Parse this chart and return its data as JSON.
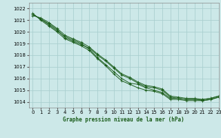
{
  "xlabel": "Graphe pression niveau de la mer (hPa)",
  "xlim": [
    -0.5,
    23
  ],
  "ylim": [
    1013.5,
    1022.5
  ],
  "yticks": [
    1014,
    1015,
    1016,
    1017,
    1018,
    1019,
    1020,
    1021,
    1022
  ],
  "xticks": [
    0,
    1,
    2,
    3,
    4,
    5,
    6,
    7,
    8,
    9,
    10,
    11,
    12,
    13,
    14,
    15,
    16,
    17,
    18,
    19,
    20,
    21,
    22,
    23
  ],
  "background_color": "#cce8e8",
  "grid_color": "#aacfcf",
  "line_color": "#1a5c1a",
  "series": [
    [
      1021.5,
      1021.1,
      1020.7,
      1020.2,
      1019.5,
      1019.2,
      1018.9,
      1018.6,
      1018.0,
      1017.5,
      1016.9,
      1016.3,
      1016.0,
      1015.6,
      1015.3,
      1015.2,
      1015.0,
      1014.4,
      1014.3,
      1014.2,
      1014.2,
      1014.1,
      1014.2,
      1014.4
    ],
    [
      1021.5,
      1021.1,
      1020.6,
      1020.1,
      1019.6,
      1019.3,
      1019.0,
      1018.5,
      1017.8,
      1017.2,
      1016.6,
      1016.0,
      1015.6,
      1015.5,
      1015.2,
      1015.0,
      1014.8,
      1014.3,
      1014.3,
      1014.2,
      1014.2,
      1014.2,
      1014.3,
      1014.5
    ],
    [
      1021.6,
      1021.0,
      1020.5,
      1020.0,
      1019.4,
      1019.1,
      1018.8,
      1018.4,
      1017.7,
      1017.1,
      1016.4,
      1015.8,
      1015.5,
      1015.2,
      1015.0,
      1014.9,
      1014.7,
      1014.2,
      1014.2,
      1014.1,
      1014.1,
      1014.1,
      1014.2,
      1014.4
    ],
    [
      1021.4,
      1021.2,
      1020.8,
      1020.3,
      1019.7,
      1019.4,
      1019.1,
      1018.7,
      1018.1,
      1017.6,
      1017.0,
      1016.4,
      1016.1,
      1015.7,
      1015.4,
      1015.3,
      1015.1,
      1014.5,
      1014.4,
      1014.3,
      1014.3,
      1014.2,
      1014.3,
      1014.5
    ]
  ]
}
